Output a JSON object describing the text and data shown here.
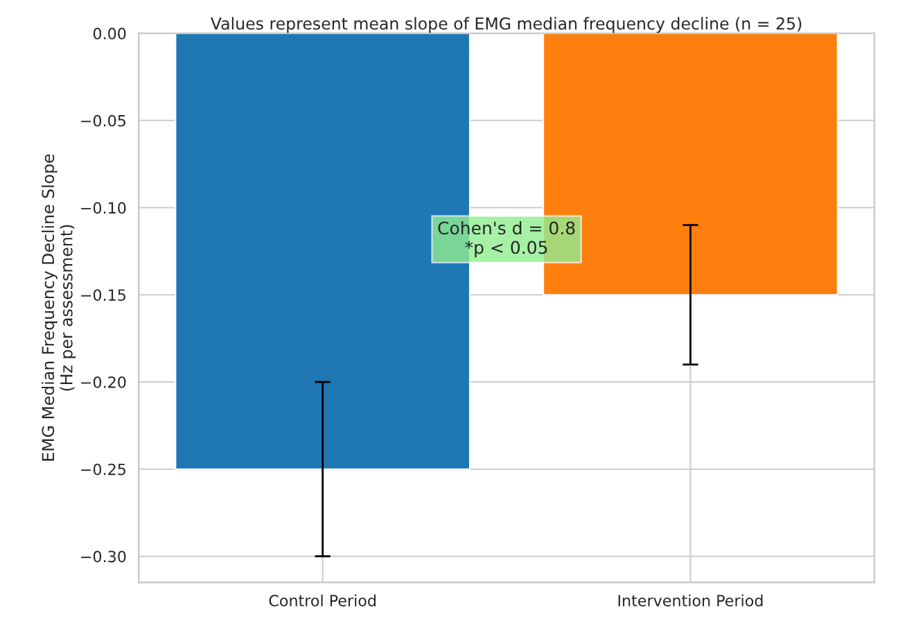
{
  "chart_data": {
    "type": "bar",
    "title": "Values represent mean slope of EMG median frequency decline (n = 25)",
    "ylabel": "EMG Median Frequency Decline Slope\n(Hz per assessment)",
    "categories": [
      "Control Period",
      "Intervention Period"
    ],
    "values": [
      -0.25,
      -0.15
    ],
    "colors": [
      "#1f77b4",
      "#ff7f0e"
    ],
    "errors": [
      0.05,
      0.04
    ],
    "ylim": [
      -0.315,
      0.0
    ],
    "yticks": [
      {
        "value": 0.0,
        "label": "0.00"
      },
      {
        "value": -0.05,
        "label": "−0.05"
      },
      {
        "value": -0.1,
        "label": "−0.10"
      },
      {
        "value": -0.15,
        "label": "−0.15"
      },
      {
        "value": -0.2,
        "label": "−0.20"
      },
      {
        "value": -0.25,
        "label": "−0.25"
      },
      {
        "value": -0.3,
        "label": "−0.30"
      }
    ],
    "annotations": [
      "Cohen's d = 0.8\n*p < 0.05"
    ],
    "grid": true
  }
}
